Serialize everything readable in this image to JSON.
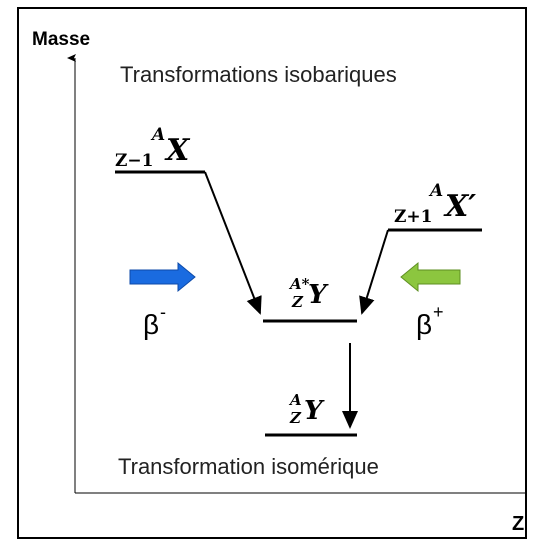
{
  "axes": {
    "y_label": "Masse",
    "x_label": "Z"
  },
  "title": "Transformations isobariques",
  "footer": "Transformation isomérique",
  "nuclides": [
    {
      "mass": "A",
      "charge": "Z−1",
      "symbol": "X"
    },
    {
      "mass": "A",
      "charge": "Z+1",
      "symbol": "X′"
    },
    {
      "mass": "A*",
      "charge": "Z",
      "symbol": "Y"
    },
    {
      "mass": "A",
      "charge": "Z",
      "symbol": "Y"
    }
  ],
  "decays": [
    {
      "label": "β",
      "sup": "-"
    },
    {
      "label": "β",
      "sup": "+"
    }
  ]
}
